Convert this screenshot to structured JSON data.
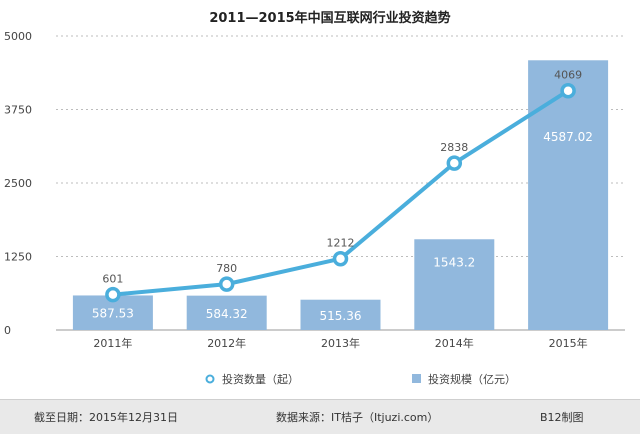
{
  "chart_data": {
    "type": "bar+line",
    "title": "2011—2015年中国互联网行业投资趋势",
    "categories": [
      "2011年",
      "2012年",
      "2013年",
      "2014年",
      "2015年"
    ],
    "y_ticks": [
      "0",
      "1250",
      "2500",
      "3750",
      "5000"
    ],
    "ylim": [
      0,
      5000
    ],
    "grid": true,
    "legend_position": "bottom",
    "series": [
      {
        "name": "投资数量（起）",
        "type": "line",
        "color": "#4aaedc",
        "values": [
          601,
          780,
          1212,
          2838,
          4069
        ],
        "labels": [
          "601",
          "780",
          "1212",
          "2838",
          "4069"
        ]
      },
      {
        "name": "投资规模（亿元）",
        "type": "bar",
        "color": "#91b8dd",
        "values": [
          587.53,
          584.32,
          515.36,
          1543.2,
          4587.02
        ],
        "labels": [
          "587.53",
          "584.32",
          "515.36",
          "1543.2",
          "4587.02"
        ]
      }
    ]
  },
  "footer": {
    "date": "截至日期：2015年12月31日",
    "source": "数据来源：IT桔子（Itjuzi.com）",
    "credit": "B12制图"
  }
}
